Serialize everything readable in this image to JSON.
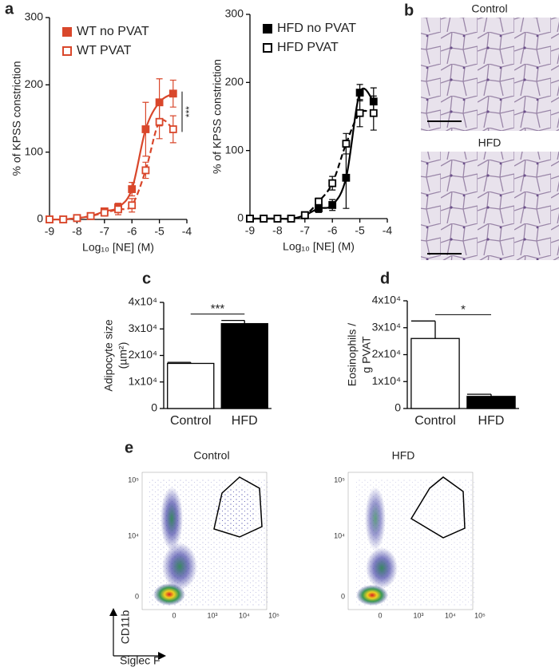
{
  "panel_labels": [
    "a",
    "b",
    "c",
    "d",
    "e"
  ],
  "chart_data": [
    {
      "type": "line",
      "ylabel": "% of KPSS constriction",
      "xlabel": "Log₁₀ [NE] (M)",
      "x": [
        -9,
        -8.5,
        -8,
        -7.5,
        -7,
        -6.5,
        -6,
        -5.5,
        -5,
        -4.5
      ],
      "series": [
        {
          "name": "WT no PVAT",
          "color": "#d9472b",
          "marker": "filled",
          "line_style": "solid",
          "values": [
            0,
            0,
            2,
            5,
            12,
            18,
            45,
            134,
            174,
            187
          ],
          "errors": [
            null,
            null,
            3,
            4,
            5,
            6,
            10,
            40,
            35,
            20
          ]
        },
        {
          "name": "WT PVAT",
          "color": "#d9472b",
          "marker": "open",
          "line_style": "dashed",
          "values": [
            0,
            0,
            2,
            5,
            10,
            15,
            21,
            73,
            145,
            134
          ],
          "errors": [
            null,
            null,
            3,
            4,
            5,
            8,
            10,
            12,
            25,
            20
          ]
        }
      ],
      "xlim": [
        -9,
        -4
      ],
      "ylim": [
        0,
        300
      ],
      "xticks": [
        -9,
        -8,
        -7,
        -6,
        -5,
        -4
      ],
      "yticks": [
        0,
        100,
        200,
        300
      ],
      "annotation": "***"
    },
    {
      "type": "line",
      "ylabel": "% of KPSS constriction",
      "xlabel": "Log₁₀ [NE] (M)",
      "x": [
        -9,
        -8.5,
        -8,
        -7.5,
        -7,
        -6.5,
        -6,
        -5.5,
        -5,
        -4.5
      ],
      "series": [
        {
          "name": "HFD no PVAT",
          "color": "#000000",
          "marker": "filled",
          "line_style": "solid",
          "values": [
            0,
            0,
            0,
            0,
            5,
            15,
            20,
            60,
            185,
            172
          ],
          "errors": [
            null,
            null,
            null,
            null,
            4,
            6,
            8,
            45,
            12,
            20
          ]
        },
        {
          "name": "HFD PVAT",
          "color": "#000000",
          "marker": "open",
          "line_style": "dashed",
          "values": [
            0,
            0,
            0,
            0,
            5,
            25,
            52,
            110,
            155,
            155
          ],
          "errors": [
            null,
            null,
            null,
            null,
            5,
            5,
            10,
            15,
            20,
            25
          ]
        }
      ],
      "xlim": [
        -9,
        -4
      ],
      "ylim": [
        0,
        300
      ],
      "xticks": [
        -9,
        -8,
        -7,
        -6,
        -5,
        -4
      ],
      "yticks": [
        0,
        100,
        200,
        300
      ]
    },
    {
      "type": "bar",
      "ylabel": [
        "Adipocyte size",
        "(µm²)"
      ],
      "categories": [
        "Control",
        "HFD"
      ],
      "values": [
        17000,
        32000
      ],
      "errors": [
        400,
        1200
      ],
      "colors": [
        "#ffffff",
        "#000000"
      ],
      "ylim": [
        0,
        40000
      ],
      "yticks": [
        0,
        {
          "value": 10000,
          "label": "1x10⁴"
        },
        {
          "value": 20000,
          "label": "2x10⁴"
        },
        {
          "value": 30000,
          "label": "3x10⁴"
        },
        {
          "value": 40000,
          "label": "4x10⁴"
        }
      ],
      "annotation": "***"
    },
    {
      "type": "bar",
      "ylabel": [
        "Eosinophils /",
        "g PVAT"
      ],
      "categories": [
        "Control",
        "HFD"
      ],
      "values": [
        26000,
        4500
      ],
      "errors": [
        6500,
        800
      ],
      "colors": [
        "#ffffff",
        "#000000"
      ],
      "ylim": [
        0,
        40000
      ],
      "yticks": [
        0,
        {
          "value": 10000,
          "label": "1x10⁴"
        },
        {
          "value": 20000,
          "label": "2x10⁴"
        },
        {
          "value": 30000,
          "label": "3x10⁴"
        },
        {
          "value": 40000,
          "label": "4x10⁴"
        }
      ],
      "annotation": "*"
    }
  ],
  "histology": {
    "titles": [
      "Control",
      "HFD"
    ]
  },
  "flow": {
    "titles": [
      "Control",
      "HFD"
    ],
    "x_label": "Siglec F",
    "y_label": "CD11b",
    "xtick_labels": [
      "0",
      "10³",
      "10⁴",
      "10⁵"
    ],
    "ytick_labels": [
      "10⁵",
      "10⁴",
      "0"
    ]
  }
}
